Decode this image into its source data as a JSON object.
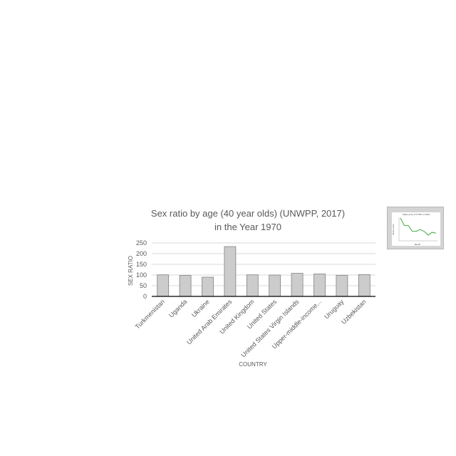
{
  "chart_data": {
    "type": "bar",
    "title_lines": [
      "Sex ratio by age (40 year olds) (UNWPP, 2017)",
      "in the Year 1970"
    ],
    "xlabel": "COUNTRY",
    "ylabel": "SEX RATIO",
    "categories": [
      "Turkmenistan",
      "Uganda",
      "Ukraine",
      "United Arab Emirates",
      "United Kingdom",
      "United States",
      "United States Virgin Islands",
      "Upper-middle-income...",
      "Uruguay",
      "Uzbekistan"
    ],
    "values": [
      101,
      98,
      90,
      233,
      101,
      100,
      108,
      105,
      99,
      102
    ],
    "ylim": [
      0,
      250
    ],
    "yticks": [
      0,
      50,
      100,
      150,
      200,
      250
    ],
    "grid": true,
    "bar_color": "#cccccc"
  },
  "thumbnail": {
    "title": "Share price of KYBC in 2016",
    "xlabel": "Month",
    "ylabel": "Share price",
    "line_color": "#2ca02c",
    "values": [
      12,
      8,
      8,
      5,
      5,
      6,
      5,
      3,
      4.5,
      4
    ]
  }
}
